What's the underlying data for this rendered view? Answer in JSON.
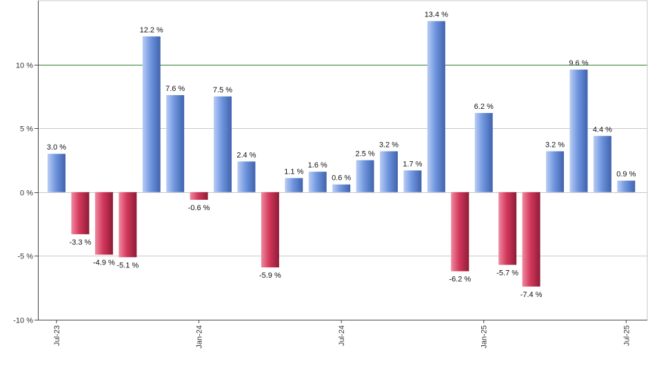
{
  "chart_data": {
    "type": "bar",
    "categories": [
      "Jul-23",
      "Aug-23",
      "Sep-23",
      "Oct-23",
      "Nov-23",
      "Dec-23",
      "Jan-24",
      "Feb-24",
      "Mar-24",
      "Apr-24",
      "May-24",
      "Jun-24",
      "Jul-24",
      "Aug-24",
      "Sep-24",
      "Oct-24",
      "Nov-24",
      "Dec-24",
      "Jan-25",
      "Feb-25",
      "Mar-25",
      "Apr-25",
      "May-25",
      "Jun-25",
      "Jul-25"
    ],
    "values": [
      3.0,
      -3.3,
      -4.9,
      -5.1,
      12.2,
      7.6,
      -0.6,
      7.5,
      2.4,
      -5.9,
      1.1,
      1.6,
      0.6,
      2.5,
      3.2,
      1.7,
      13.4,
      -6.2,
      6.2,
      -5.7,
      -7.4,
      3.2,
      9.6,
      4.4,
      0.9
    ],
    "data_labels": [
      "3.0 %",
      "-3.3 %",
      "-4.9 %",
      "-5.1 %",
      "12.2 %",
      "7.6 %",
      "-0.6 %",
      "7.5 %",
      "2.4 %",
      "-5.9 %",
      "1.1 %",
      "1.6 %",
      "0.6 %",
      "2.5 %",
      "3.2 %",
      "1.7 %",
      "13.4 %",
      "-6.2 %",
      "6.2 %",
      "-5.7 %",
      "-7.4 %",
      "3.2 %",
      "9.6 %",
      "4.4 %",
      "0.9 %"
    ],
    "x_tick_labels": [
      "Jul-23",
      "Jan-24",
      "Jul-24",
      "Jan-25",
      "Jul-25"
    ],
    "y_ticks": [
      10,
      5,
      0,
      -5,
      -10
    ],
    "y_tick_labels": [
      "10 %",
      "5 %",
      "0 %",
      "-5 %",
      "-10 %"
    ],
    "ylim": [
      -10,
      15
    ],
    "reference_line": 10,
    "grid": true,
    "title": "",
    "xlabel": "",
    "ylabel": "",
    "colors": {
      "positive_light": "#b9cdf5",
      "positive": "#7096df",
      "positive_dark": "#3f63ad",
      "negative_light": "#f08a9f",
      "negative": "#d3385c",
      "negative_dark": "#8e1c36",
      "reference_line": "#2e7d32",
      "grid": "#c8c8c8",
      "axis": "#444444"
    }
  }
}
